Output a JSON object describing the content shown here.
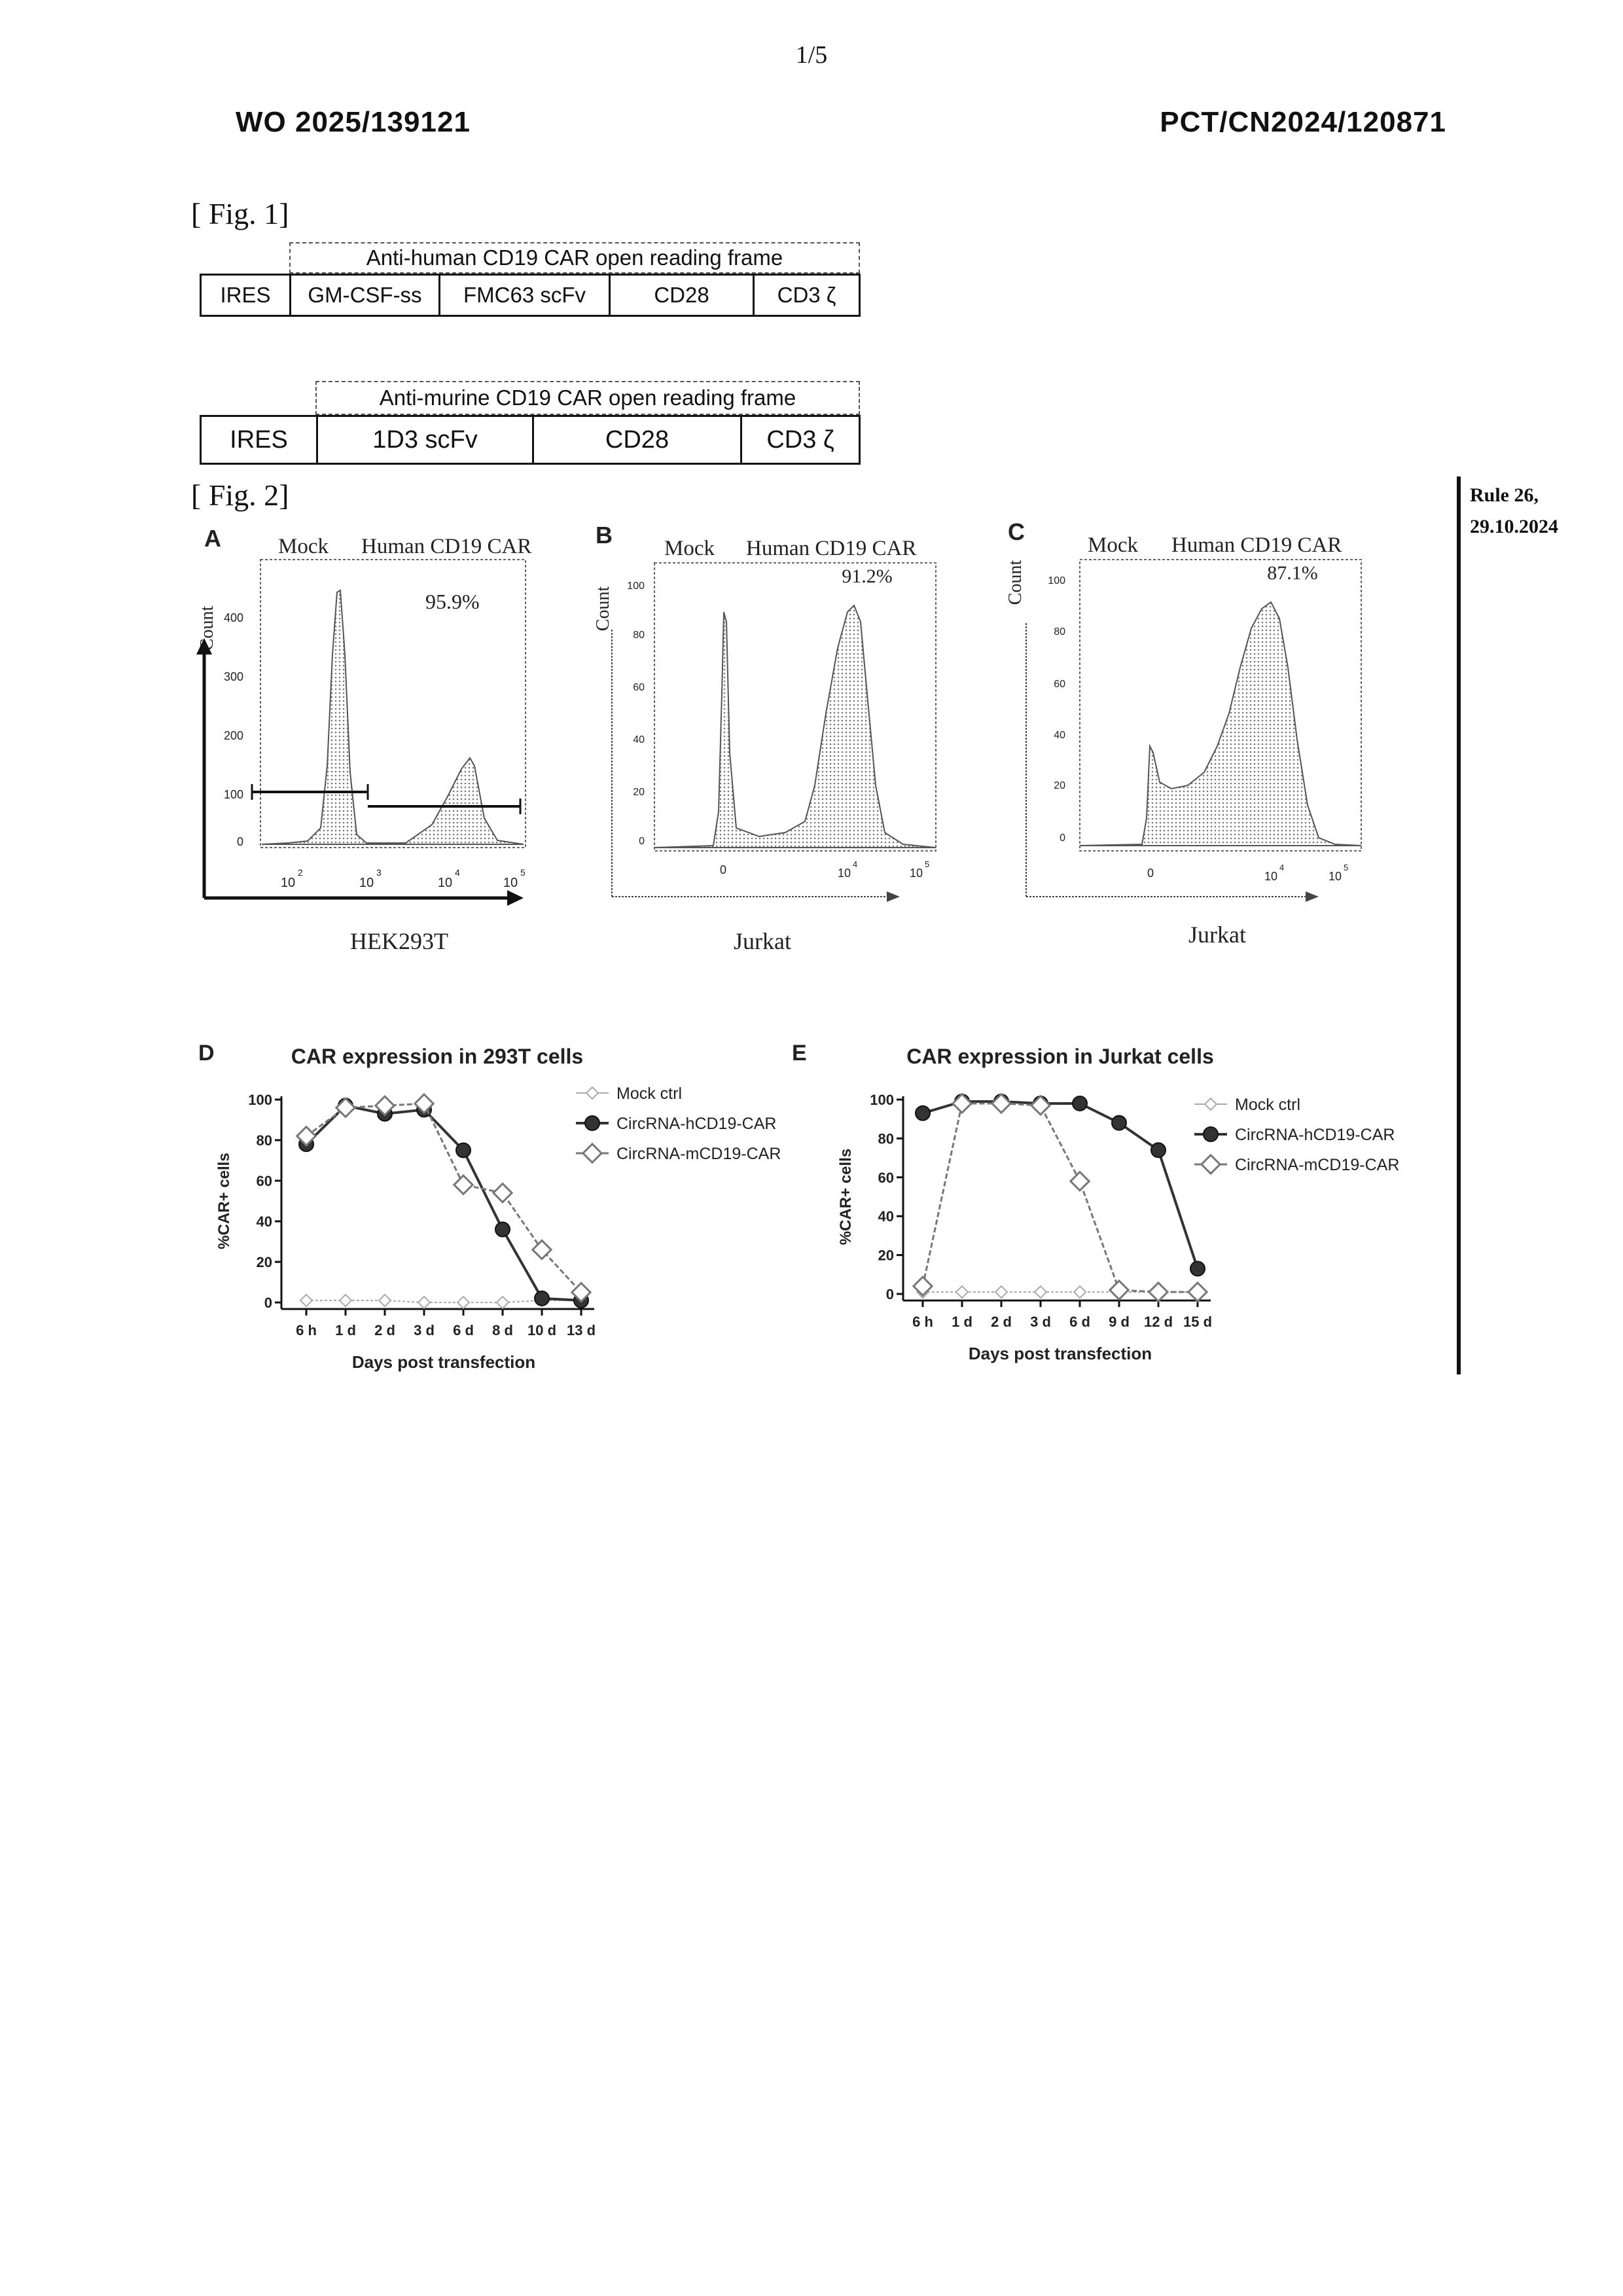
{
  "header": {
    "page_number": "1/5",
    "publication_number": "WO 2025/139121",
    "application_number": "PCT/CN2024/120871"
  },
  "side_note": {
    "line1": "Rule 26,",
    "line2": "29.10.2024"
  },
  "fig1": {
    "label": "[ Fig. 1]",
    "construct1": {
      "orf_label": "Anti-human CD19 CAR open reading frame",
      "segments": [
        "IRES",
        "GM-CSF-ss",
        "FMC63 scFv",
        "CD28",
        "CD3 ζ"
      ]
    },
    "construct2": {
      "orf_label": "Anti-murine CD19 CAR open reading frame",
      "segments": [
        "IRES",
        "1D3 scFv",
        "CD28",
        "CD3 ζ"
      ]
    }
  },
  "fig2": {
    "label": "[ Fig. 2]",
    "panels": [
      {
        "letter": "A",
        "mock_label": "Mock",
        "car_label": "Human CD19 CAR",
        "percent": "95.9%",
        "ylabel": "Count",
        "yticks": [
          "0",
          "100",
          "200",
          "300",
          "400"
        ],
        "xticks": [
          "10",
          "10",
          "10",
          "10"
        ],
        "xtick_exponents": [
          "2",
          "3",
          "4",
          "5"
        ],
        "cell_label": "HEK293T"
      },
      {
        "letter": "B",
        "mock_label": "Mock",
        "car_label": "Human CD19 CAR",
        "percent": "91.2%",
        "ylabel": "Count",
        "yticks": [
          "0",
          "20",
          "40",
          "60",
          "80",
          "100"
        ],
        "xticks": [
          "0",
          "10",
          "10"
        ],
        "xtick_exponents": [
          "",
          "4",
          "5"
        ],
        "cell_label": "Jurkat"
      },
      {
        "letter": "C",
        "mock_label": "Mock",
        "car_label": "Human CD19 CAR",
        "percent": "87.1%",
        "ylabel": "Count",
        "yticks": [
          "0",
          "20",
          "40",
          "60",
          "80",
          "100"
        ],
        "xticks": [
          "0",
          "10",
          "10"
        ],
        "xtick_exponents": [
          "",
          "4",
          "5"
        ],
        "cell_label": "Jurkat"
      }
    ]
  },
  "chart_data": [
    {
      "panel": "D",
      "type": "line",
      "title": "CAR expression in 293T cells",
      "xlabel": "Days post transfection",
      "ylabel": "%CAR+ cells",
      "categories": [
        "6 h",
        "1 d",
        "2 d",
        "3 d",
        "6 d",
        "8 d",
        "10 d",
        "13 d"
      ],
      "ylim": [
        0,
        100
      ],
      "yticks": [
        "0",
        "20",
        "40",
        "60",
        "80",
        "100"
      ],
      "legend_position": "top-right",
      "series": [
        {
          "name": "Mock ctrl",
          "values": [
            1,
            1,
            1,
            0,
            0,
            0,
            1,
            1
          ],
          "color": "#aaaaaa"
        },
        {
          "name": "CircRNA-hCD19-CAR",
          "values": [
            78,
            97,
            93,
            95,
            75,
            36,
            2,
            1
          ],
          "color": "#333333"
        },
        {
          "name": "CircRNA-mCD19-CAR",
          "values": [
            82,
            96,
            97,
            98,
            58,
            54,
            26,
            5
          ],
          "color": "#777777"
        }
      ]
    },
    {
      "panel": "E",
      "type": "line",
      "title": "CAR expression in Jurkat cells",
      "xlabel": "Days post transfection",
      "ylabel": "%CAR+ cells",
      "categories": [
        "6 h",
        "1 d",
        "2 d",
        "3 d",
        "6 d",
        "9 d",
        "12 d",
        "15 d"
      ],
      "ylim": [
        0,
        100
      ],
      "yticks": [
        "0",
        "20",
        "40",
        "60",
        "80",
        "100"
      ],
      "legend_position": "top-right",
      "series": [
        {
          "name": "Mock ctrl",
          "values": [
            1,
            1,
            1,
            1,
            1,
            1,
            1,
            1
          ],
          "color": "#aaaaaa"
        },
        {
          "name": "CircRNA-hCD19-CAR",
          "values": [
            93,
            99,
            99,
            98,
            98,
            88,
            74,
            13
          ],
          "color": "#333333"
        },
        {
          "name": "CircRNA-mCD19-CAR",
          "values": [
            4,
            98,
            98,
            97,
            58,
            2,
            1,
            1
          ],
          "color": "#777777"
        }
      ]
    }
  ]
}
